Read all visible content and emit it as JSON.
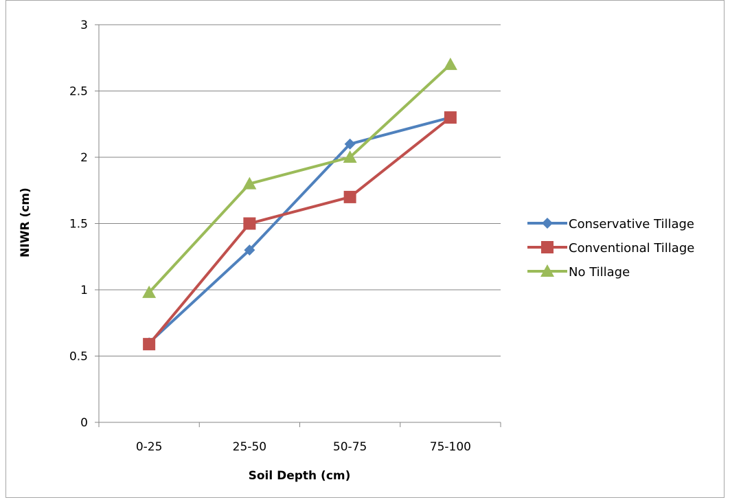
{
  "chart_data": {
    "type": "line",
    "title": "",
    "xlabel": "Soil Depth (cm)",
    "ylabel": "NIWR (cm)",
    "categories": [
      "0-25",
      "25-50",
      "50-75",
      "75-100"
    ],
    "ylim": [
      0,
      3
    ],
    "yticks": [
      "0",
      "0.5",
      "1",
      "1.5",
      "2",
      "2.5",
      "3"
    ],
    "grid": true,
    "legend": "right",
    "series": [
      {
        "name": "Conservative Tillage",
        "values": [
          0.6,
          1.3,
          2.1,
          2.3
        ],
        "color": "#4f81bd",
        "marker": "diamond"
      },
      {
        "name": "Conventional Tillage",
        "values": [
          0.59,
          1.5,
          1.7,
          2.3
        ],
        "color": "#c0504d",
        "marker": "square"
      },
      {
        "name": "No Tillage",
        "values": [
          0.98,
          1.8,
          2.0,
          2.7
        ],
        "color": "#9bbb59",
        "marker": "triangle"
      }
    ]
  }
}
